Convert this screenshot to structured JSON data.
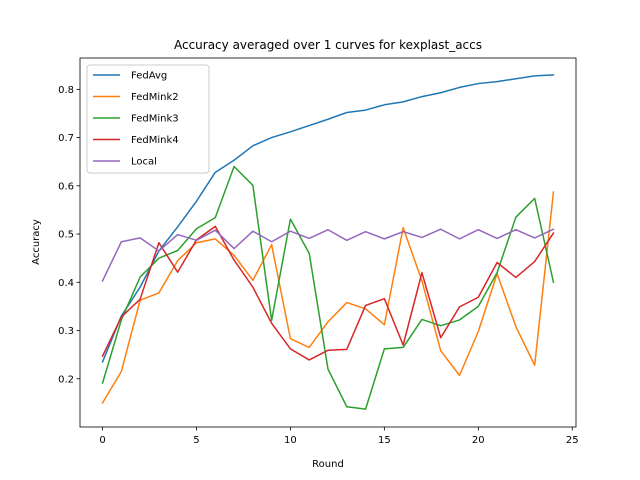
{
  "chart_data": {
    "type": "line",
    "title": "Accuracy averaged over 1 curves for kexplast_accs",
    "xlabel": "Round",
    "ylabel": "Accuracy",
    "xlim": [
      -1.2,
      25.2
    ],
    "ylim": [
      0.1,
      0.865
    ],
    "xticks": [
      0,
      5,
      10,
      15,
      20,
      25
    ],
    "yticks": [
      0.2,
      0.3,
      0.4,
      0.5,
      0.6,
      0.7,
      0.8
    ],
    "legend_position": "upper-left",
    "x": [
      0,
      1,
      2,
      3,
      4,
      5,
      6,
      7,
      8,
      9,
      10,
      11,
      12,
      13,
      14,
      15,
      16,
      17,
      18,
      19,
      20,
      21,
      22,
      23,
      24
    ],
    "series": [
      {
        "name": "FedAvg",
        "color": "#1f77b4",
        "values": [
          0.235,
          0.33,
          0.39,
          0.465,
          0.515,
          0.568,
          0.628,
          0.653,
          0.683,
          0.7,
          0.712,
          0.725,
          0.738,
          0.752,
          0.757,
          0.768,
          0.774,
          0.785,
          0.793,
          0.804,
          0.812,
          0.816,
          0.822,
          0.828,
          0.83
        ]
      },
      {
        "name": "FedMink2",
        "color": "#ff7f0e",
        "values": [
          0.15,
          0.215,
          0.363,
          0.378,
          0.445,
          0.482,
          0.49,
          0.456,
          0.404,
          0.478,
          0.283,
          0.265,
          0.318,
          0.358,
          0.345,
          0.312,
          0.513,
          0.403,
          0.258,
          0.207,
          0.298,
          0.418,
          0.308,
          0.228,
          0.587
        ]
      },
      {
        "name": "FedMink3",
        "color": "#2ca02c",
        "values": [
          0.191,
          0.322,
          0.411,
          0.45,
          0.466,
          0.511,
          0.534,
          0.64,
          0.601,
          0.321,
          0.531,
          0.46,
          0.22,
          0.142,
          0.137,
          0.262,
          0.265,
          0.323,
          0.31,
          0.322,
          0.35,
          0.42,
          0.535,
          0.574,
          0.4
        ]
      },
      {
        "name": "FedMink4",
        "color": "#d62728",
        "values": [
          0.247,
          0.328,
          0.365,
          0.482,
          0.421,
          0.488,
          0.516,
          0.446,
          0.39,
          0.315,
          0.262,
          0.239,
          0.259,
          0.261,
          0.352,
          0.366,
          0.27,
          0.42,
          0.285,
          0.349,
          0.369,
          0.441,
          0.41,
          0.443,
          0.502
        ]
      },
      {
        "name": "Local",
        "color": "#9467bd",
        "values": [
          0.403,
          0.484,
          0.492,
          0.465,
          0.499,
          0.487,
          0.508,
          0.47,
          0.506,
          0.484,
          0.506,
          0.491,
          0.509,
          0.487,
          0.505,
          0.49,
          0.505,
          0.493,
          0.51,
          0.49,
          0.509,
          0.491,
          0.509,
          0.492,
          0.51
        ]
      }
    ]
  }
}
